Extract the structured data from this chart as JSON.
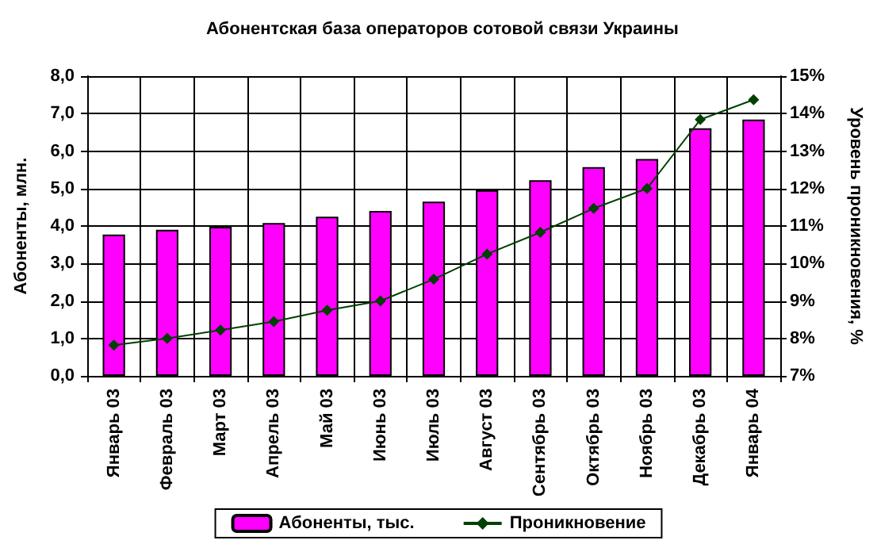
{
  "chart_data": {
    "type": "bar",
    "title": "Абонентская база операторов сотовой связи Украины",
    "categories": [
      "Январь 03",
      "Февраль 03",
      "Март 03",
      "Апрель 03",
      "Май 03",
      "Июнь 03",
      "Июль 03",
      "Август 03",
      "Сентябрь 03",
      "Октябрь 03",
      "Ноябрь 03",
      "Декабрь 03",
      "Январь 04"
    ],
    "series": [
      {
        "name": "Абоненты, тыс.",
        "color": "#ff00ff",
        "values": [
          3.77,
          3.9,
          3.98,
          4.08,
          4.25,
          4.4,
          4.65,
          4.96,
          5.22,
          5.57,
          5.79,
          6.61,
          6.84
        ]
      },
      {
        "name": "Проникновение",
        "type": "line",
        "axis": "y2",
        "color": "#004000",
        "marker": "diamond",
        "values": [
          7.82,
          8.0,
          8.22,
          8.45,
          8.75,
          9.0,
          9.58,
          10.25,
          10.83,
          11.47,
          12.0,
          13.84,
          14.37
        ]
      }
    ],
    "ylabel": "Абоненты, млн.",
    "y2label": "Уровень проникновения, %",
    "ylim": [
      0,
      8
    ],
    "yticks": [
      {
        "value": 0,
        "label": "0,0"
      },
      {
        "value": 1,
        "label": "1,0"
      },
      {
        "value": 2,
        "label": "2,0"
      },
      {
        "value": 3,
        "label": "3,0"
      },
      {
        "value": 4,
        "label": "4,0"
      },
      {
        "value": 5,
        "label": "5,0"
      },
      {
        "value": 6,
        "label": "6,0"
      },
      {
        "value": 7,
        "label": "7,0"
      },
      {
        "value": 8,
        "label": "8,0"
      }
    ],
    "y2lim": [
      7,
      15
    ],
    "y2ticks": [
      {
        "value": 7,
        "label": "7%"
      },
      {
        "value": 8,
        "label": "8%"
      },
      {
        "value": 9,
        "label": "9%"
      },
      {
        "value": 10,
        "label": "10%"
      },
      {
        "value": 11,
        "label": "11%"
      },
      {
        "value": 12,
        "label": "12%"
      },
      {
        "value": 13,
        "label": "13%"
      },
      {
        "value": 14,
        "label": "14%"
      },
      {
        "value": 15,
        "label": "15%"
      }
    ],
    "grid": true,
    "legend": "bottom"
  }
}
